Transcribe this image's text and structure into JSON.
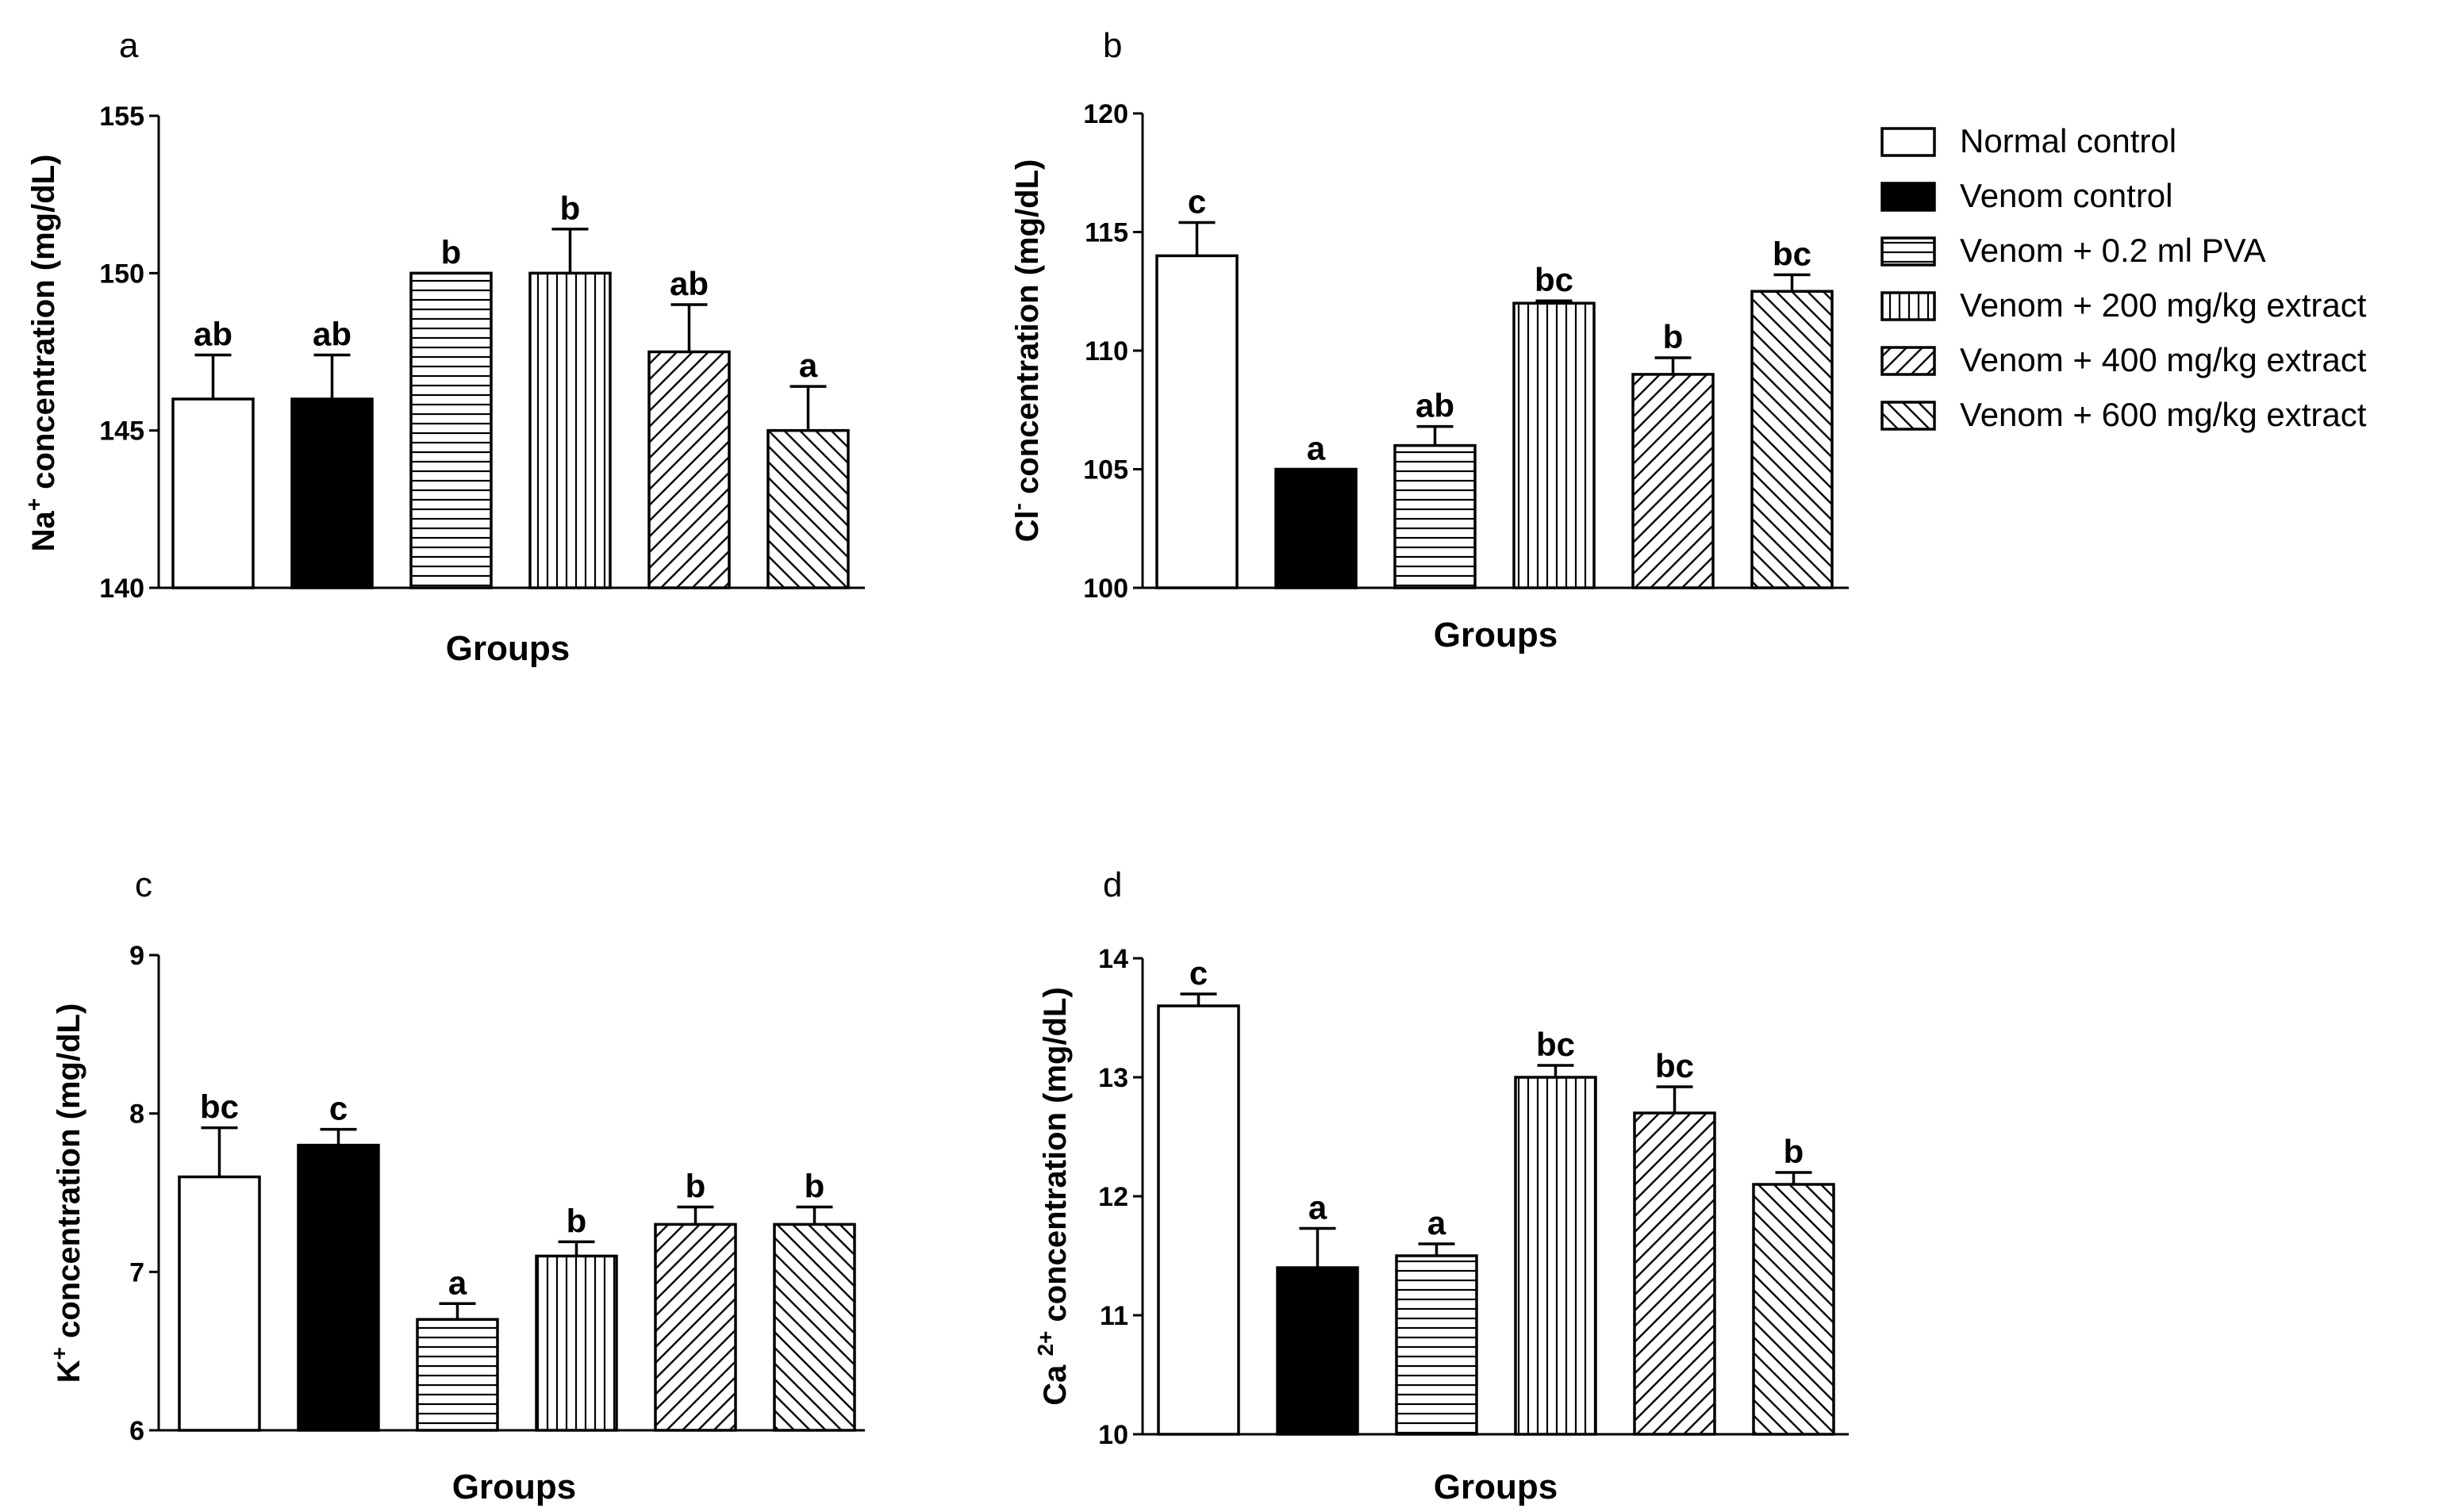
{
  "legend": {
    "entries": [
      {
        "label": "Normal control",
        "pattern": "white"
      },
      {
        "label": "Venom control",
        "pattern": "black"
      },
      {
        "label": "Venom + 0.2 ml PVA",
        "pattern": "hlines"
      },
      {
        "label": "Venom + 200 mg/kg extract",
        "pattern": "vlines"
      },
      {
        "label": "Venom + 400 mg/kg extract",
        "pattern": "diag-up"
      },
      {
        "label": "Venom + 600 mg/kg extract",
        "pattern": "diag-down"
      }
    ]
  },
  "chart_data": [
    {
      "panel": "a",
      "type": "bar",
      "ylabel_main": "Na",
      "ylabel_sup": "+",
      "ylabel_rest": " concentration (mg/dL)",
      "xlabel": "Groups",
      "ylim": [
        140,
        155
      ],
      "yticks": [
        "140",
        "145",
        "150",
        "155"
      ],
      "values": [
        146,
        146,
        150,
        150,
        147.5,
        145
      ],
      "errors": [
        1.4,
        1.4,
        0,
        1.4,
        1.5,
        1.4
      ],
      "letters": [
        "ab",
        "ab",
        "b",
        "b",
        "ab",
        "a"
      ]
    },
    {
      "panel": "b",
      "type": "bar",
      "ylabel_main": "Cl",
      "ylabel_sup": "-",
      "ylabel_rest": " concentration (mg/dL)",
      "xlabel": "Groups",
      "ylim": [
        100,
        120
      ],
      "yticks": [
        "100",
        "105",
        "110",
        "115",
        "120"
      ],
      "values": [
        114,
        105,
        106,
        112,
        109,
        112.5
      ],
      "errors": [
        1.4,
        0,
        0.8,
        0.1,
        0.7,
        0.7
      ],
      "letters": [
        "c",
        "a",
        "ab",
        "bc",
        "b",
        "bc"
      ]
    },
    {
      "panel": "c",
      "type": "bar",
      "ylabel_main": "K",
      "ylabel_sup": "+",
      "ylabel_rest": " concentration (mg/dL)",
      "xlabel": "Groups",
      "ylim": [
        6,
        9
      ],
      "yticks": [
        "6",
        "7",
        "8",
        "9"
      ],
      "values": [
        7.6,
        7.8,
        6.7,
        7.1,
        7.3,
        7.3
      ],
      "errors": [
        0.31,
        0.1,
        0.1,
        0.09,
        0.11,
        0.11
      ],
      "letters": [
        "bc",
        "c",
        "a",
        "b",
        "b",
        "b"
      ]
    },
    {
      "panel": "d",
      "type": "bar",
      "ylabel_main": "Ca ",
      "ylabel_sup": "2+",
      "ylabel_rest": " concentration (mg/dL)",
      "xlabel": "Groups",
      "ylim": [
        10,
        14
      ],
      "yticks": [
        "10",
        "11",
        "12",
        "13",
        "14"
      ],
      "values": [
        13.6,
        11.4,
        11.5,
        13,
        12.7,
        12.1
      ],
      "errors": [
        0.1,
        0.33,
        0.1,
        0.1,
        0.22,
        0.1
      ],
      "letters": [
        "c",
        "a",
        "a",
        "bc",
        "bc",
        "b"
      ]
    }
  ]
}
